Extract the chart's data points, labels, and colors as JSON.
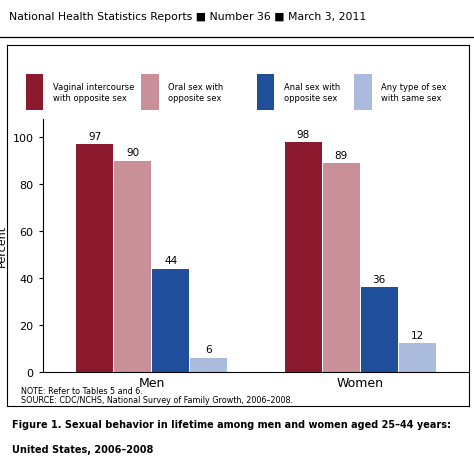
{
  "title_header": "National Health Statistics Reports ■ Number 36 ■ March 3, 2011",
  "groups": [
    "Men",
    "Women"
  ],
  "categories": [
    "Vaginal intercourse\nwith opposite sex",
    "Oral sex with\nopposite sex",
    "Anal sex with\nopposite sex",
    "Any type of sex\nwith same sex"
  ],
  "values": {
    "Men": [
      97,
      90,
      44,
      6
    ],
    "Women": [
      98,
      89,
      36,
      12
    ]
  },
  "colors": [
    "#8B1A2E",
    "#C9909A",
    "#1F4E9A",
    "#AABBDD"
  ],
  "ylabel": "Percent",
  "ylim": [
    0,
    108
  ],
  "yticks": [
    0,
    20,
    40,
    60,
    80,
    100
  ],
  "note_line1": "NOTE: Refer to Tables 5 and 6.",
  "note_line2": "SOURCE: CDC/NCHS, National Survey of Family Growth, 2006–2008.",
  "figure_caption_line1": "Figure 1. Sexual behavior in lifetime among men and women aged 25–44 years:",
  "figure_caption_line2": "United States, 2006–2008",
  "bar_width": 0.08
}
